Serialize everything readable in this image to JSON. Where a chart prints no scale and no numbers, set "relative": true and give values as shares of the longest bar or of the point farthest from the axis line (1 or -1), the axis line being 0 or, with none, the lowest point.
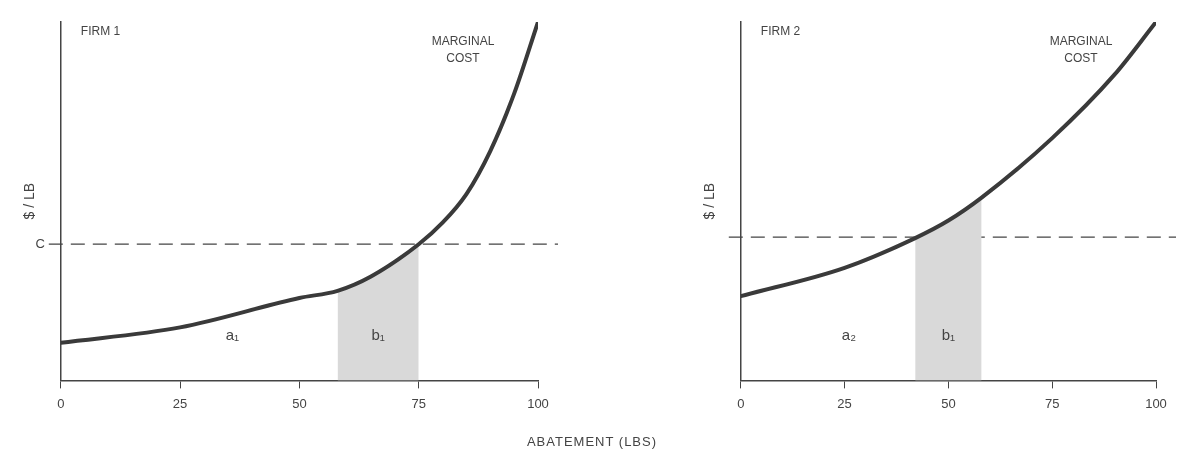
{
  "chart_data": [
    {
      "type": "line",
      "title": "FIRM 1",
      "xlabel": "ABATEMENT (LBS)",
      "ylabel": "$ / LB",
      "relative": true,
      "grid": false,
      "legend": false,
      "marker": "none",
      "line_style": "solid",
      "xlim": [
        0,
        100
      ],
      "xticks": [
        0,
        25,
        50,
        75,
        100
      ],
      "series": [
        {
          "name": "MARGINAL COST",
          "color": "#3a3a3a",
          "x": [
            0,
            25,
            50,
            58,
            65,
            75,
            80,
            85,
            90,
            95,
            100
          ],
          "values": [
            0.105,
            0.148,
            0.23,
            0.25,
            0.29,
            0.38,
            0.44,
            0.52,
            0.64,
            0.8,
            1.0
          ]
        },
        {
          "type": "area",
          "color": "#d9d9d9",
          "x": [
            58,
            65,
            75
          ],
          "values": [
            0.25,
            0.29,
            0.38
          ]
        }
      ],
      "ref_lines": [
        {
          "axis": "y",
          "value": 0.38,
          "label": "C",
          "line_style": "dashed"
        }
      ],
      "annotations": [
        "a₁",
        "b₁"
      ]
    },
    {
      "type": "line",
      "title": "FIRM 2",
      "ylabel": "$ / LB",
      "relative": true,
      "grid": false,
      "legend": false,
      "marker": "none",
      "line_style": "solid",
      "xlim": [
        0,
        100
      ],
      "xticks": [
        0,
        25,
        50,
        75,
        100
      ],
      "series": [
        {
          "name": "MARGINAL COST",
          "color": "#3a3a3a",
          "x": [
            0,
            25,
            42,
            50,
            58,
            75,
            90,
            100
          ],
          "values": [
            0.235,
            0.314,
            0.397,
            0.446,
            0.51,
            0.676,
            0.853,
            1.0
          ]
        },
        {
          "type": "area",
          "color": "#d9d9d9",
          "x": [
            42,
            50,
            58
          ],
          "values": [
            0.397,
            0.446,
            0.51
          ]
        }
      ],
      "ref_lines": [
        {
          "axis": "y",
          "value": 0.4,
          "line_style": "dashed"
        }
      ],
      "annotations": [
        "a₂",
        "b₁"
      ]
    }
  ]
}
